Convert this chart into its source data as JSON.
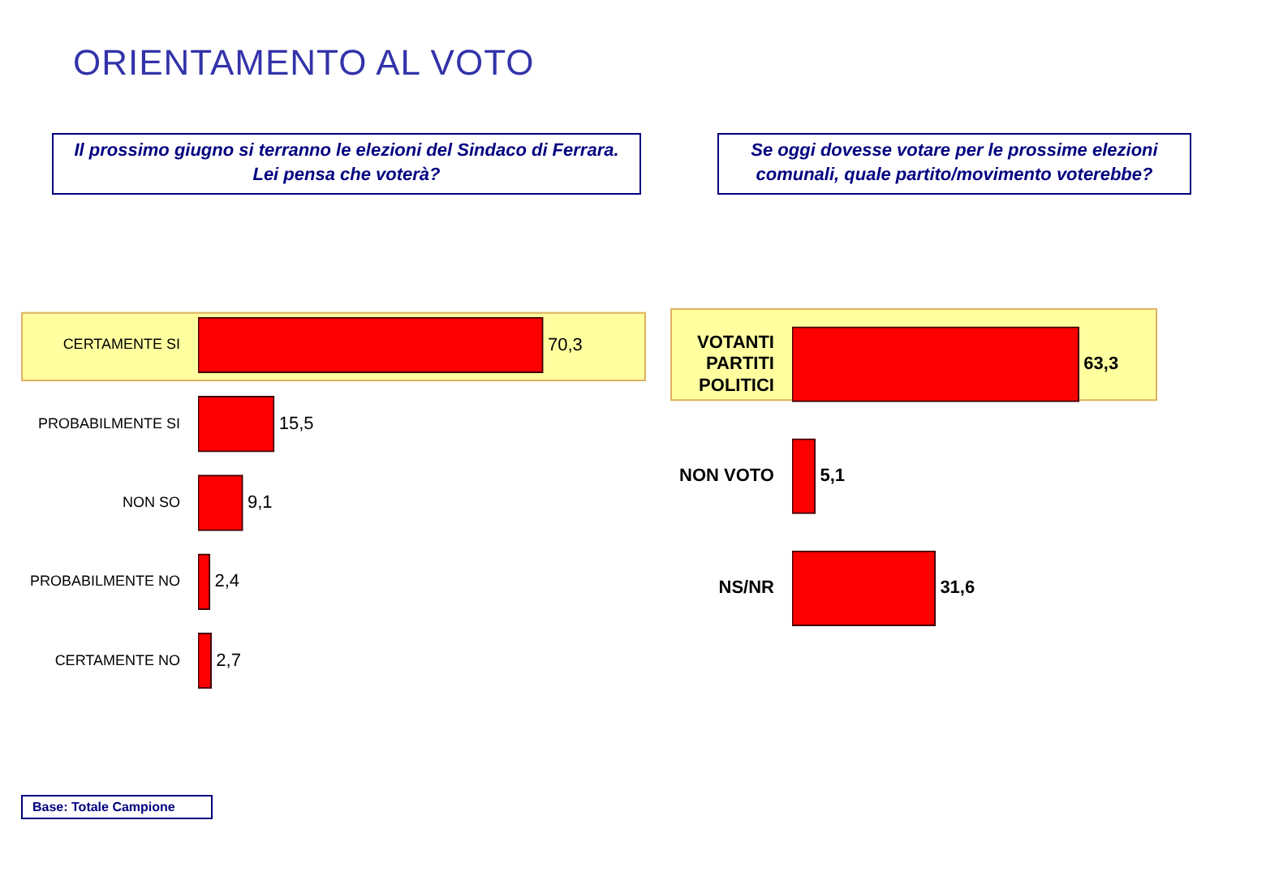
{
  "chart_data": [
    {
      "type": "bar",
      "orientation": "horizontal",
      "title": "ORIENTAMENTO AL VOTO",
      "subtitle": "Il prossimo giugno si terranno le elezioni del Sindaco di Ferrara. Lei pensa che voterà?",
      "categories": [
        "CERTAMENTE SI",
        "PROBABILMENTE SI",
        "NON SO",
        "PROBABILMENTE NO",
        "CERTAMENTE NO"
      ],
      "values": [
        70.3,
        15.5,
        9.1,
        2.4,
        2.7
      ],
      "value_labels": [
        "70,3",
        "15,5",
        "9,1",
        "2,4",
        "2,7"
      ],
      "color": "#ff0000",
      "legend": false,
      "bands": [
        {
          "axis": "y",
          "from": "CERTAMENTE SI",
          "to": "CERTAMENTE SI",
          "color": "#ffffa0"
        }
      ],
      "annotations": [
        "Base: Totale Campione"
      ]
    },
    {
      "type": "bar",
      "orientation": "horizontal",
      "title": "Se oggi dovesse votare per le prossime elezioni comunali, quale partito/movimento voterebbe?",
      "categories": [
        "VOTANTI PARTITI POLITICI",
        "NON VOTO",
        "NS/NR"
      ],
      "values": [
        63.3,
        5.1,
        31.6
      ],
      "value_labels": [
        "63,3",
        "5,1",
        "31,6"
      ],
      "color": "#ff0000",
      "legend": false,
      "bands": [
        {
          "axis": "y",
          "from": "VOTANTI PARTITI POLITICI",
          "to": "VOTANTI PARTITI POLITICI",
          "color": "#ffffa0"
        }
      ]
    }
  ]
}
